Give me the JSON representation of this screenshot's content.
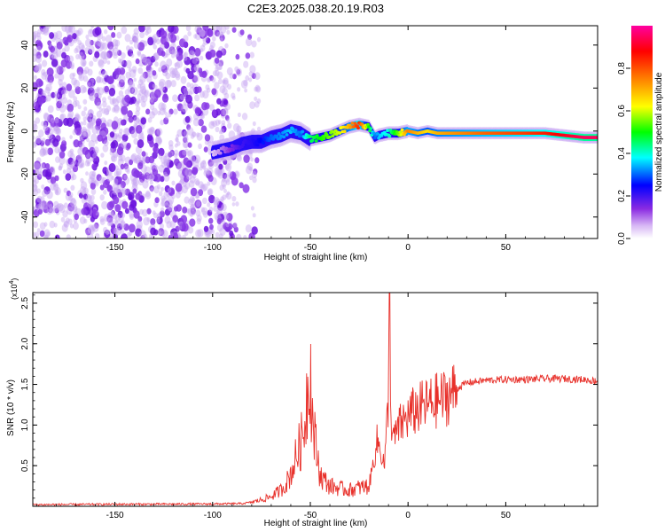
{
  "title": "C2E3.2025.038.20.19.R03",
  "chart_data": [
    {
      "type": "heatmap",
      "xlabel": "Height of straight line (km)",
      "ylabel": "Frequency (Hz)",
      "xlim": [
        -192,
        97
      ],
      "ylim": [
        -50,
        49
      ],
      "xticks": [
        -150,
        -100,
        -50,
        0,
        50
      ],
      "xtick_labels": [
        "-150",
        "-100",
        "-50",
        "0",
        "50"
      ],
      "yticks": [
        -40,
        -20,
        0,
        20,
        40
      ],
      "ytick_labels": [
        "-40",
        "-20",
        "0",
        "20",
        "40"
      ],
      "colorbar": {
        "label": "Normalized spectral amplitude",
        "range": [
          0,
          1
        ],
        "ticks": [
          0.0,
          0.2,
          0.4,
          0.6,
          0.8
        ],
        "tick_labels": [
          "0.0",
          "0.2",
          "0.4",
          "0.6",
          "0.8"
        ],
        "colors": [
          "#ffffff",
          "#8a2be2",
          "#0000ff",
          "#00ffff",
          "#00ff00",
          "#ffff00",
          "#ff8000",
          "#ff0000",
          "#ff00a0"
        ]
      },
      "noise_region_x": [
        -192,
        -76
      ],
      "ridge": {
        "x": [
          -100,
          -95,
          -90,
          -85,
          -80,
          -75,
          -70,
          -65,
          -60,
          -55,
          -50,
          -45,
          -40,
          -35,
          -30,
          -25,
          -20,
          -17,
          -15,
          -10,
          -5,
          0,
          5,
          10,
          15,
          20,
          30,
          40,
          50,
          60,
          70,
          80,
          90,
          97
        ],
        "y": [
          -10,
          -9,
          -8,
          -6,
          -5,
          -5,
          -3,
          -2,
          0,
          -1,
          -4,
          -3,
          -2,
          0,
          2,
          3,
          2,
          -3,
          -2,
          -1,
          -1,
          0,
          -1,
          0,
          -1,
          -1,
          -1,
          -1,
          -1,
          -1,
          -1,
          -2,
          -3,
          -3
        ],
        "amplitude": [
          0.05,
          0.1,
          0.15,
          0.2,
          0.22,
          0.25,
          0.3,
          0.32,
          0.35,
          0.3,
          0.45,
          0.5,
          0.55,
          0.6,
          0.7,
          0.85,
          0.5,
          0.3,
          0.35,
          0.4,
          0.55,
          0.75,
          0.7,
          0.65,
          0.7,
          0.72,
          0.75,
          0.78,
          0.8,
          0.82,
          0.85,
          0.9,
          0.95,
          0.95
        ]
      }
    },
    {
      "type": "line",
      "xlabel": "Height of straight line (km)",
      "ylabel": "SNR (10 * v/v)",
      "y_multiplier_label": "(x10",
      "y_multiplier_exp": "4",
      "y_multiplier_close": ")",
      "xlim": [
        -192,
        97
      ],
      "ylim": [
        0,
        26300
      ],
      "xticks": [
        -150,
        -100,
        -50,
        0,
        50
      ],
      "xtick_labels": [
        "-150",
        "-100",
        "-50",
        "0",
        "50"
      ],
      "yticks": [
        5000,
        10000,
        15000,
        20000,
        25000
      ],
      "ytick_labels": [
        "0.5",
        "1.0",
        "1.5",
        "2.0",
        "2.5"
      ],
      "line_color": "#e8302a",
      "series": [
        {
          "x": [
            -192,
            -150,
            -100,
            -85,
            -80,
            -75,
            -70,
            -65,
            -62,
            -60,
            -58,
            -56,
            -54,
            -53,
            -52,
            -51,
            -50,
            -49,
            -48,
            -47,
            -46,
            -45,
            -44,
            -42,
            -40,
            -35,
            -30,
            -25,
            -22,
            -20,
            -18,
            -16,
            -14,
            -13,
            -12,
            -11,
            -10,
            -9.5,
            -9,
            -8,
            -7,
            -6,
            -4,
            -2,
            0,
            2,
            5,
            10,
            15,
            20,
            25,
            30,
            40,
            50,
            60,
            70,
            80,
            90,
            97
          ],
          "y": [
            200,
            250,
            280,
            330,
            500,
            800,
            1200,
            2000,
            3000,
            4000,
            5500,
            7000,
            8500,
            10000,
            13000,
            15500,
            17500,
            11000,
            9000,
            7000,
            5500,
            4000,
            3500,
            3000,
            2500,
            2200,
            2000,
            2300,
            2400,
            2500,
            5000,
            8000,
            7000,
            6000,
            5000,
            9000,
            14000,
            26300,
            12000,
            9500,
            8000,
            9000,
            10000,
            10500,
            11000,
            11500,
            12000,
            12500,
            13000,
            13500,
            14500,
            15200,
            15500,
            15600,
            15600,
            15700,
            15700,
            15600,
            15400
          ]
        }
      ]
    }
  ]
}
